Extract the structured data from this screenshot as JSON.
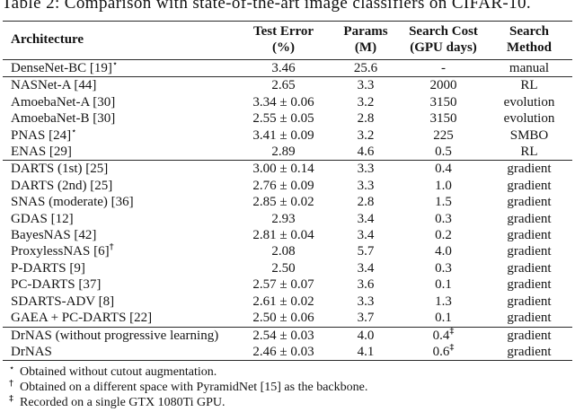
{
  "caption": "Table 2: Comparison with state-of-the-art image classifiers on CIFAR-10.",
  "table": {
    "headers": {
      "architecture": "Architecture",
      "test_error_line1": "Test Error",
      "test_error_line2": "(%)",
      "params_line1": "Params",
      "params_line2": "(M)",
      "search_cost_line1": "Search Cost",
      "search_cost_line2": "(GPU days)",
      "search_method_line1": "Search",
      "search_method_line2": "Method"
    },
    "rows": [
      {
        "arch": "DenseNet-BC [19]",
        "arch_sup": "⋆",
        "err": "3.46",
        "params": "25.6",
        "cost": "-",
        "cost_sup": "",
        "method": "manual"
      },
      {
        "arch": "NASNet-A [44]",
        "arch_sup": "",
        "err": "2.65",
        "params": "3.3",
        "cost": "2000",
        "cost_sup": "",
        "method": "RL"
      },
      {
        "arch": "AmoebaNet-A [30]",
        "arch_sup": "",
        "err": "3.34 ± 0.06",
        "params": "3.2",
        "cost": "3150",
        "cost_sup": "",
        "method": "evolution"
      },
      {
        "arch": "AmoebaNet-B [30]",
        "arch_sup": "",
        "err": "2.55 ± 0.05",
        "params": "2.8",
        "cost": "3150",
        "cost_sup": "",
        "method": "evolution"
      },
      {
        "arch": "PNAS [24]",
        "arch_sup": "⋆",
        "err": "3.41 ± 0.09",
        "params": "3.2",
        "cost": "225",
        "cost_sup": "",
        "method": "SMBO"
      },
      {
        "arch": "ENAS [29]",
        "arch_sup": "",
        "err": "2.89",
        "params": "4.6",
        "cost": "0.5",
        "cost_sup": "",
        "method": "RL"
      },
      {
        "arch": "DARTS (1st) [25]",
        "arch_sup": "",
        "err": "3.00 ± 0.14",
        "params": "3.3",
        "cost": "0.4",
        "cost_sup": "",
        "method": "gradient"
      },
      {
        "arch": "DARTS (2nd) [25]",
        "arch_sup": "",
        "err": "2.76 ± 0.09",
        "params": "3.3",
        "cost": "1.0",
        "cost_sup": "",
        "method": "gradient"
      },
      {
        "arch": "SNAS (moderate) [36]",
        "arch_sup": "",
        "err": "2.85 ± 0.02",
        "params": "2.8",
        "cost": "1.5",
        "cost_sup": "",
        "method": "gradient"
      },
      {
        "arch": "GDAS [12]",
        "arch_sup": "",
        "err": "2.93",
        "params": "3.4",
        "cost": "0.3",
        "cost_sup": "",
        "method": "gradient"
      },
      {
        "arch": "BayesNAS [42]",
        "arch_sup": "",
        "err": "2.81 ± 0.04",
        "params": "3.4",
        "cost": "0.2",
        "cost_sup": "",
        "method": "gradient"
      },
      {
        "arch": "ProxylessNAS [6]",
        "arch_sup": "†",
        "err": "2.08",
        "params": "5.7",
        "cost": "4.0",
        "cost_sup": "",
        "method": "gradient"
      },
      {
        "arch": "P-DARTS [9]",
        "arch_sup": "",
        "err": "2.50",
        "params": "3.4",
        "cost": "0.3",
        "cost_sup": "",
        "method": "gradient"
      },
      {
        "arch": "PC-DARTS [37]",
        "arch_sup": "",
        "err": "2.57 ± 0.07",
        "params": "3.6",
        "cost": "0.1",
        "cost_sup": "",
        "method": "gradient"
      },
      {
        "arch": "SDARTS-ADV [8]",
        "arch_sup": "",
        "err": "2.61 ± 0.02",
        "params": "3.3",
        "cost": "1.3",
        "cost_sup": "",
        "method": "gradient"
      },
      {
        "arch": "GAEA + PC-DARTS [22]",
        "arch_sup": "",
        "err": "2.50 ± 0.06",
        "params": "3.7",
        "cost": "0.1",
        "cost_sup": "",
        "method": "gradient"
      },
      {
        "arch": "DrNAS (without progressive learning)",
        "arch_sup": "",
        "err": "2.54 ± 0.03",
        "params": "4.0",
        "cost": "0.4",
        "cost_sup": "‡",
        "method": "gradient"
      },
      {
        "arch": "DrNAS",
        "arch_sup": "",
        "err": "2.46 ± 0.03",
        "params": "4.1",
        "cost": "0.6",
        "cost_sup": "‡",
        "method": "gradient"
      }
    ]
  },
  "footnotes": [
    {
      "marker": "⋆",
      "text": "Obtained without cutout augmentation."
    },
    {
      "marker": "†",
      "text": "Obtained on a different space with PyramidNet [15] as the backbone."
    },
    {
      "marker": "‡",
      "text": "Recorded on a single GTX 1080Ti GPU."
    }
  ]
}
